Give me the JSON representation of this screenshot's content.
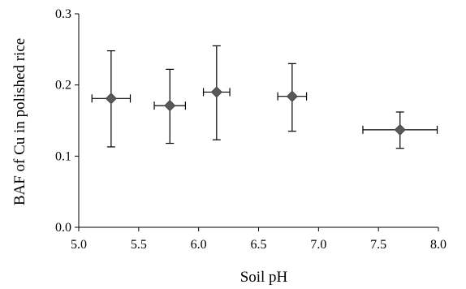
{
  "chart_data": {
    "type": "scatter",
    "title": "",
    "xlabel": "Soil pH",
    "ylabel": "BAF of Cu in polished rice",
    "xlim": [
      5.0,
      8.0
    ],
    "ylim": [
      0.0,
      0.3
    ],
    "x_ticks": [
      "5.0",
      "5.5",
      "6.0",
      "6.5",
      "7.0",
      "7.5",
      "8.0"
    ],
    "y_ticks": [
      "0.0",
      "0.1",
      "0.2",
      "0.3"
    ],
    "grid": false,
    "marker": "diamond",
    "marker_color": "#595959",
    "points": [
      {
        "x": 5.27,
        "y": 0.181,
        "x_err": [
          5.11,
          5.43
        ],
        "y_err": [
          0.113,
          0.248
        ]
      },
      {
        "x": 5.76,
        "y": 0.171,
        "x_err": [
          5.63,
          5.89
        ],
        "y_err": [
          0.118,
          0.222
        ]
      },
      {
        "x": 6.15,
        "y": 0.19,
        "x_err": [
          6.04,
          6.26
        ],
        "y_err": [
          0.123,
          0.255
        ]
      },
      {
        "x": 6.78,
        "y": 0.184,
        "x_err": [
          6.66,
          6.9
        ],
        "y_err": [
          0.135,
          0.23
        ]
      },
      {
        "x": 7.68,
        "y": 0.137,
        "x_err": [
          7.37,
          7.99
        ],
        "y_err": [
          0.111,
          0.162
        ]
      }
    ]
  }
}
